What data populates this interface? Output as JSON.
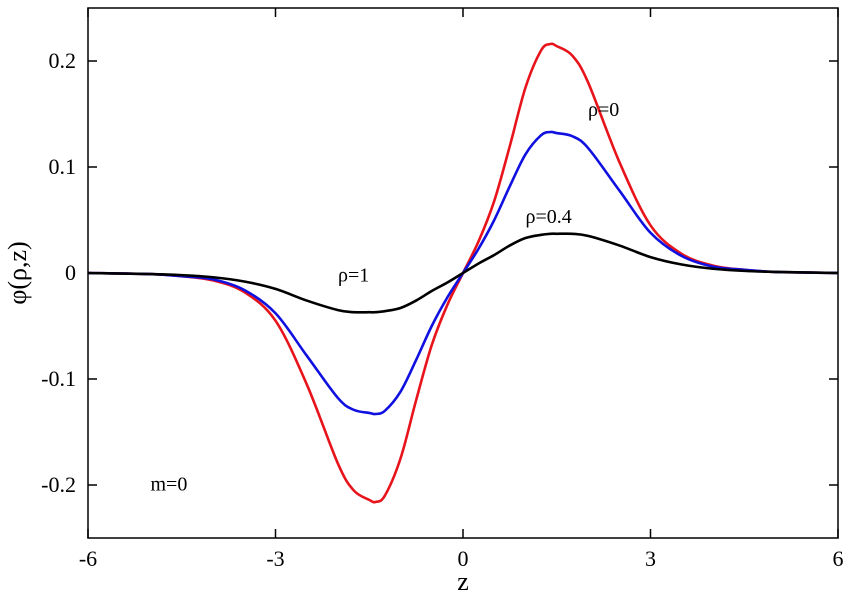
{
  "chart_data": {
    "type": "line",
    "xlabel": "z",
    "ylabel": "φ(ρ,z)",
    "xlim": [
      -6,
      6
    ],
    "ylim": [
      -0.25,
      0.25
    ],
    "x_ticks": [
      -6,
      -3,
      0,
      3,
      6
    ],
    "x_tick_labels": [
      "-6",
      "-3",
      "0",
      "3",
      "6"
    ],
    "y_ticks": [
      -0.2,
      -0.1,
      0,
      0.1,
      0.2
    ],
    "y_tick_labels": [
      "-0.2",
      "-0.1",
      "0",
      "0.1",
      "0.2"
    ],
    "grid": false,
    "legend": "none",
    "x": [
      -6,
      -5,
      -4.5,
      -4,
      -3.5,
      -3,
      -2.5,
      -2,
      -1.75,
      -1.5,
      -1.4,
      -1.25,
      -1,
      -0.75,
      -0.5,
      -0.25,
      0,
      0.25,
      0.5,
      0.75,
      1,
      1.25,
      1.4,
      1.5,
      1.75,
      2,
      2.5,
      3,
      3.5,
      4,
      4.5,
      5,
      6
    ],
    "series": [
      {
        "color": "#e8141c",
        "values": [
          0,
          -0.001,
          -0.003,
          -0.007,
          -0.018,
          -0.045,
          -0.105,
          -0.18,
          -0.205,
          -0.214,
          -0.216,
          -0.21,
          -0.175,
          -0.12,
          -0.068,
          -0.03,
          0,
          0.03,
          0.068,
          0.12,
          0.175,
          0.21,
          0.216,
          0.214,
          0.205,
          0.18,
          0.105,
          0.045,
          0.018,
          0.007,
          0.003,
          0.001,
          0
        ]
      },
      {
        "color": "#1010e0",
        "values": [
          0,
          -0.001,
          -0.003,
          -0.006,
          -0.016,
          -0.038,
          -0.078,
          -0.118,
          -0.129,
          -0.132,
          -0.133,
          -0.13,
          -0.112,
          -0.082,
          -0.05,
          -0.023,
          0,
          0.023,
          0.05,
          0.082,
          0.112,
          0.13,
          0.133,
          0.132,
          0.129,
          0.118,
          0.078,
          0.038,
          0.016,
          0.006,
          0.003,
          0.001,
          0
        ]
      },
      {
        "color": "#000000",
        "values": [
          0,
          -0.001,
          -0.002,
          -0.004,
          -0.008,
          -0.015,
          -0.026,
          -0.035,
          -0.037,
          -0.037,
          -0.037,
          -0.036,
          -0.033,
          -0.026,
          -0.017,
          -0.009,
          0,
          0.009,
          0.017,
          0.026,
          0.033,
          0.036,
          0.037,
          0.037,
          0.037,
          0.035,
          0.026,
          0.015,
          0.008,
          0.004,
          0.002,
          0.001,
          0
        ]
      }
    ],
    "annotations": [
      {
        "text": "ρ=0",
        "x": 2.0,
        "y": 0.148
      },
      {
        "text": "ρ=0.4",
        "x": 1.0,
        "y": 0.047
      },
      {
        "text": "ρ=1",
        "x": -2.0,
        "y": -0.008
      },
      {
        "text": "m=0",
        "x": -5.0,
        "y": -0.205
      }
    ]
  }
}
